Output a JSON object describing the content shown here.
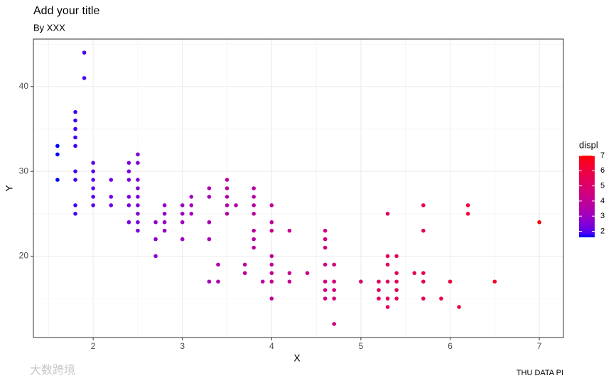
{
  "chart_data": {
    "type": "scatter",
    "title": "Add your title",
    "subtitle": "By XXX",
    "x_label": "X",
    "y_label": "Y",
    "caption": "THU DATA PI",
    "watermark": "大数跨境",
    "x": [
      1.6,
      1.6,
      1.6,
      1.8,
      1.8,
      1.8,
      1.8,
      1.8,
      1.8,
      1.8,
      1.8,
      1.8,
      1.9,
      1.9,
      2.0,
      2.0,
      2.0,
      2.0,
      2.0,
      2.0,
      2.2,
      2.2,
      2.2,
      2.4,
      2.4,
      2.4,
      2.4,
      2.4,
      2.4,
      2.5,
      2.5,
      2.5,
      2.5,
      2.5,
      2.5,
      2.5,
      2.5,
      2.5,
      2.7,
      2.7,
      2.7,
      2.8,
      2.8,
      2.8,
      2.8,
      3.0,
      3.0,
      3.0,
      3.0,
      3.1,
      3.1,
      3.1,
      3.3,
      3.3,
      3.3,
      3.3,
      3.3,
      3.4,
      3.4,
      3.5,
      3.5,
      3.5,
      3.5,
      3.5,
      3.6,
      3.7,
      3.7,
      3.8,
      3.8,
      3.8,
      3.8,
      3.8,
      3.8,
      3.8,
      3.9,
      4.0,
      4.0,
      4.0,
      4.0,
      4.0,
      4.0,
      4.0,
      4.0,
      4.2,
      4.2,
      4.2,
      4.4,
      4.6,
      4.6,
      4.6,
      4.6,
      4.6,
      4.6,
      4.6,
      4.7,
      4.7,
      4.7,
      4.7,
      4.7,
      5.0,
      5.2,
      5.2,
      5.2,
      5.3,
      5.3,
      5.3,
      5.3,
      5.3,
      5.3,
      5.4,
      5.4,
      5.4,
      5.4,
      5.4,
      5.6,
      5.7,
      5.7,
      5.7,
      5.7,
      5.7,
      5.9,
      6.0,
      6.1,
      6.2,
      6.2,
      6.5,
      7.0
    ],
    "values": [
      33,
      32,
      29,
      37,
      36,
      35,
      34,
      33,
      30,
      29,
      26,
      25,
      44,
      41,
      31,
      30,
      29,
      28,
      27,
      26,
      29,
      27,
      26,
      31,
      30,
      29,
      27,
      26,
      24,
      32,
      31,
      29,
      28,
      27,
      26,
      25,
      24,
      23,
      24,
      22,
      20,
      26,
      25,
      24,
      23,
      26,
      25,
      24,
      22,
      27,
      26,
      25,
      28,
      27,
      24,
      22,
      17,
      19,
      17,
      29,
      28,
      27,
      26,
      25,
      26,
      19,
      18,
      28,
      27,
      26,
      25,
      23,
      22,
      21,
      17,
      26,
      24,
      23,
      20,
      19,
      18,
      17,
      15,
      23,
      18,
      17,
      18,
      23,
      22,
      21,
      19,
      17,
      16,
      15,
      19,
      17,
      16,
      15,
      12,
      17,
      17,
      16,
      15,
      25,
      20,
      19,
      17,
      15,
      14,
      20,
      18,
      17,
      16,
      15,
      18,
      26,
      23,
      18,
      17,
      15,
      15,
      17,
      14,
      26,
      25,
      17,
      24
    ],
    "xlim": [
      1.33,
      7.27
    ],
    "ylim": [
      10.4,
      45.6
    ],
    "xticks": [
      2,
      3,
      4,
      5,
      6,
      7
    ],
    "yticks": [
      20,
      30,
      40
    ],
    "minor_xticks": [
      1.5,
      2.5,
      3.5,
      4.5,
      5.5,
      6.5
    ],
    "minor_yticks": [
      15,
      25,
      35,
      45
    ],
    "grid": true,
    "color_scale": {
      "title": "displ",
      "low": "#0000ff",
      "high": "#ff0000",
      "limits": [
        1.6,
        7
      ],
      "ticks": [
        2,
        3,
        4,
        5,
        6,
        7
      ]
    }
  }
}
